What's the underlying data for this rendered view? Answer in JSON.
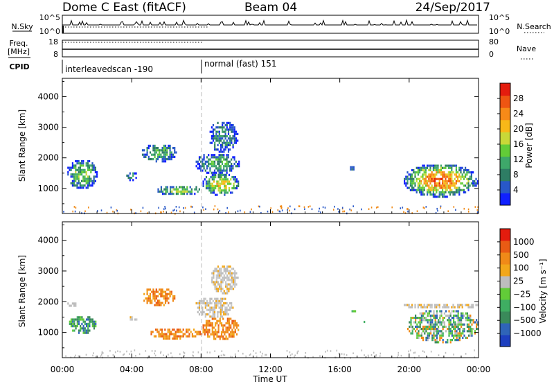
{
  "header": {
    "station": "Dome C East (fitACF)",
    "beam": "Beam 04",
    "date": "24/Sep/2017"
  },
  "status_panels": {
    "nsky_label": "N.Sky",
    "nsky_ticks": [
      "10^5",
      "10^0"
    ],
    "nsearch_label": "N.Search",
    "nsearch_ticks": [
      "10^5",
      "10^0"
    ],
    "freq_label_line1": "Freq.",
    "freq_label_line2": "[MHz]",
    "freq_ticks": [
      "18",
      "8"
    ],
    "nave_label": "Nave",
    "nave_ticks": [
      "80",
      "0"
    ],
    "cpid_label": "CPID",
    "cpid_segments": [
      {
        "name": "interleavedscan -190",
        "start_hour": 0,
        "end_hour": 8
      },
      {
        "name": "normal (fast) 151",
        "start_hour": 8,
        "end_hour": 24
      }
    ]
  },
  "chart_data": [
    {
      "type": "heatmap",
      "parameter": "power",
      "ylabel": "Slant Range [km]",
      "xlabel": "",
      "ylim": [
        180,
        4600
      ],
      "yticks": [
        1000,
        2000,
        3000,
        4000
      ],
      "xlim": [
        0,
        24
      ],
      "colorbar": {
        "label": "Power [dB]",
        "range": [
          0,
          32
        ],
        "ticks": [
          "4",
          "8",
          "12",
          "16",
          "20",
          "24",
          "28"
        ],
        "colors": [
          "#1020ff",
          "#2858c8",
          "#2e7d64",
          "#3ea86a",
          "#62cc38",
          "#c8d838",
          "#f8b818",
          "#f78a18",
          "#ee5512",
          "#e41c0e"
        ]
      },
      "echo_regions": [
        {
          "t": [
            0.2,
            2.0
          ],
          "r": [
            1000,
            2000
          ],
          "level": 0.45
        },
        {
          "t": [
            3.6,
            4.3
          ],
          "r": [
            1300,
            1600
          ],
          "level": 0.3
        },
        {
          "t": [
            4.5,
            6.6
          ],
          "r": [
            1900,
            2500
          ],
          "level": 0.4
        },
        {
          "t": [
            5.4,
            8.0
          ],
          "r": [
            800,
            1150
          ],
          "level": 0.5
        },
        {
          "t": [
            7.6,
            10.2
          ],
          "r": [
            1500,
            2200
          ],
          "level": 0.35
        },
        {
          "t": [
            8.4,
            10.1
          ],
          "r": [
            2200,
            3250
          ],
          "level": 0.25
        },
        {
          "t": [
            8.0,
            10.2
          ],
          "r": [
            800,
            1550
          ],
          "level": 0.65
        },
        {
          "t": [
            16.5,
            16.8
          ],
          "r": [
            1600,
            1800
          ],
          "level": 0.3
        },
        {
          "t": [
            19.6,
            23.95
          ],
          "r": [
            750,
            1850
          ],
          "level": 0.85
        }
      ]
    },
    {
      "type": "heatmap",
      "parameter": "velocity",
      "ylabel": "Slant Range [km]",
      "xlabel": "Time UT",
      "ylim": [
        180,
        4600
      ],
      "yticks": [
        1000,
        2000,
        3000,
        4000
      ],
      "xlim": [
        0,
        24
      ],
      "xticks": [
        "00:00",
        "04:00",
        "08:00",
        "12:00",
        "16:00",
        "20:00",
        "00:00"
      ],
      "colorbar": {
        "label": "Velocity [m s⁻¹]",
        "ticks": [
          "1000",
          "500",
          "100",
          "25",
          "−25",
          "−100",
          "−500",
          "−1000"
        ],
        "colors": [
          "#1d3fbf",
          "#2f64b8",
          "#3a8a5a",
          "#3fae62",
          "#62cc38",
          "#bdbdbd",
          "#f2a71a",
          "#f08a18",
          "#e95b14",
          "#e41c0e"
        ]
      },
      "echo_regions": [
        {
          "t": [
            0.2,
            0.8
          ],
          "r": [
            1850,
            2050
          ],
          "kind": "grey"
        },
        {
          "t": [
            0.3,
            2.0
          ],
          "r": [
            1000,
            1600
          ],
          "kind": "green"
        },
        {
          "t": [
            3.8,
            4.3
          ],
          "r": [
            1400,
            1600
          ],
          "kind": "grey"
        },
        {
          "t": [
            4.5,
            6.5
          ],
          "r": [
            1900,
            2500
          ],
          "kind": "orange"
        },
        {
          "t": [
            5.0,
            8.0
          ],
          "r": [
            800,
            1200
          ],
          "kind": "orange"
        },
        {
          "t": [
            7.6,
            9.8
          ],
          "r": [
            1500,
            2200
          ],
          "kind": "grey"
        },
        {
          "t": [
            8.5,
            10.1
          ],
          "r": [
            2300,
            3250
          ],
          "kind": "grey"
        },
        {
          "t": [
            8.0,
            10.2
          ],
          "r": [
            800,
            1550
          ],
          "kind": "orange"
        },
        {
          "t": [
            16.5,
            16.9
          ],
          "r": [
            1600,
            1800
          ],
          "kind": "green"
        },
        {
          "t": [
            17.2,
            17.5
          ],
          "r": [
            1300,
            1450
          ],
          "kind": "green"
        },
        {
          "t": [
            19.6,
            24.0
          ],
          "r": [
            1800,
            2000
          ],
          "kind": "grey"
        },
        {
          "t": [
            19.8,
            24.0
          ],
          "r": [
            700,
            1800
          ],
          "kind": "mixed"
        }
      ]
    }
  ]
}
